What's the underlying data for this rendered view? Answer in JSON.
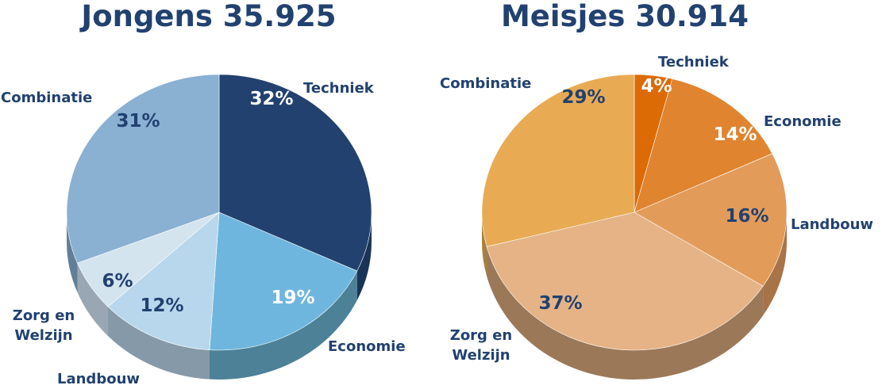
{
  "chart_data": [
    {
      "type": "pie",
      "title": "Jongens 35.925",
      "title_color": "#214170",
      "label_color": "#214170",
      "slices": [
        {
          "name": "Techniek",
          "value": 32,
          "label": "32%",
          "color": "#22416f",
          "side": "#1a3458",
          "label_color": "#ffffff"
        },
        {
          "name": "Economie",
          "value": 19,
          "label": "19%",
          "color": "#6fb6de",
          "side": "#4c8197",
          "label_color": "#ffffff"
        },
        {
          "name": "Landbouw",
          "value": 12,
          "label": "12%",
          "color": "#b8d7ec",
          "side": "#8599a8",
          "label_color": "#214170"
        },
        {
          "name": "Zorg en Welzijn",
          "value": 6,
          "label": "6%",
          "color": "#d3e4ef",
          "side": "#98a7b3",
          "label_color": "#214170"
        },
        {
          "name": "Combinatie",
          "value": 31,
          "label": "31%",
          "color": "#8ab0d2",
          "side": "#627f98",
          "label_color": "#214170"
        }
      ]
    },
    {
      "type": "pie",
      "title": "Meisjes 30.914",
      "title_color": "#214170",
      "label_color": "#214170",
      "slices": [
        {
          "name": "Techniek",
          "value": 4,
          "label": "4%",
          "color": "#dc6b05",
          "side": "#a3500a",
          "label_color": "#ffffff"
        },
        {
          "name": "Economie",
          "value": 14,
          "label": "14%",
          "color": "#e08430",
          "side": "#a66223",
          "label_color": "#ffffff"
        },
        {
          "name": "Landbouw",
          "value": 16,
          "label": "16%",
          "color": "#e39b5a",
          "side": "#a87346",
          "label_color": "#214170"
        },
        {
          "name": "Zorg en Welzijn",
          "value": 37,
          "label": "37%",
          "color": "#e5b386",
          "side": "#9b7858",
          "label_color": "#214170"
        },
        {
          "name": "Combinatie",
          "value": 29,
          "label": "29%",
          "color": "#e8ab53",
          "side": "#a8803f",
          "label_color": "#214170"
        }
      ]
    }
  ]
}
